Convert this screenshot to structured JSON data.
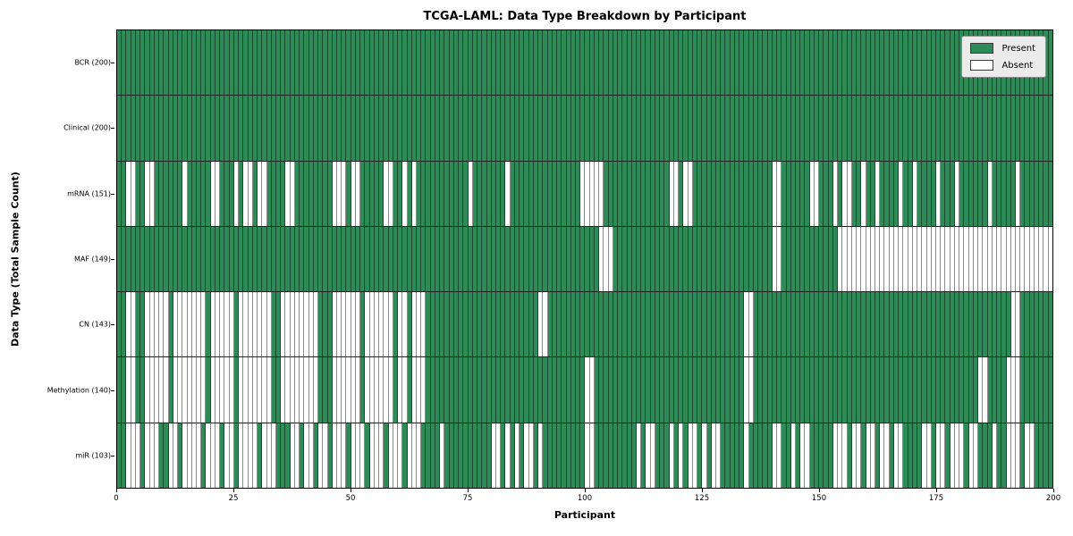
{
  "colors": {
    "present": "#2e8b57",
    "absent": "#ffffff",
    "cell_border": "#333333"
  },
  "chart_data": {
    "type": "heatmap",
    "title": "TCGA-LAML: Data Type Breakdown by Participant",
    "xlabel": "Participant",
    "ylabel": "Data Type (Total Sample Count)",
    "x_range": [
      0,
      200
    ],
    "x_ticks": [
      0,
      25,
      50,
      75,
      100,
      125,
      150,
      175,
      200
    ],
    "n_participants": 200,
    "values_encoding": "each row: 20 blocks of 10 chars, 1=Present 0=Absent, participants 0-199 left to right",
    "legend": {
      "position": "upper right",
      "items": [
        {
          "label": "Present",
          "color": "#2e8b57"
        },
        {
          "label": "Absent",
          "color": "#ffffff"
        }
      ]
    },
    "rows": [
      {
        "label": "BCR (200)",
        "name": "bcr",
        "total": 200,
        "presence": [
          "1111111111",
          "1111111111",
          "1111111111",
          "1111111111",
          "1111111111",
          "1111111111",
          "1111111111",
          "1111111111",
          "1111111111",
          "1111111111",
          "1111111111",
          "1111111111",
          "1111111111",
          "1111111111",
          "1111111111",
          "1111111111",
          "1111111111",
          "1111111111",
          "1111111111",
          "1111111111"
        ]
      },
      {
        "label": "Clinical (200)",
        "name": "clinical",
        "total": 200,
        "presence": [
          "1111111111",
          "1111111111",
          "1111111111",
          "1111111111",
          "1111111111",
          "1111111111",
          "1111111111",
          "1111111111",
          "1111111111",
          "1111111111",
          "1111111111",
          "1111111111",
          "1111111111",
          "1111111111",
          "1111111111",
          "1111111111",
          "1111111111",
          "1111111111",
          "1111111111",
          "1111111111"
        ]
      },
      {
        "label": "mRNA (151)",
        "name": "mrna",
        "total": 151,
        "presence": [
          "1100110011",
          "1111011111",
          "0011101001",
          "0011110011",
          "1111110001",
          "0011111001",
          "1010111111",
          "1111101111",
          "1110111111",
          "1111111110",
          "0000111111",
          "1111111100",
          "1001111111",
          "1111111111",
          "0011111100",
          "1110100110",
          "1101111011",
          "0111101110",
          "1111110111",
          "1101111111"
        ]
      },
      {
        "label": "MAF (149)",
        "name": "maf",
        "total": 149,
        "presence": [
          "1111111111",
          "1111111111",
          "1111111111",
          "1111111111",
          "1111111111",
          "1111111111",
          "1111111111",
          "1111111111",
          "1111111111",
          "1111111111",
          "1110001111",
          "1111111111",
          "1111111111",
          "1111111111",
          "0011111111",
          "1111000000",
          "0000000000",
          "0000000000",
          "0000000000",
          "0000000000"
        ]
      },
      {
        "label": "CN (143)",
        "name": "cn",
        "total": 143,
        "presence": [
          "1100110000",
          "0100000001",
          "0000010000",
          "0001100000",
          "0001110000",
          "0010000001",
          "0010001111",
          "1111111111",
          "1111111111",
          "0011111111",
          "1111111111",
          "1111111111",
          "1111111111",
          "1111001111",
          "1111111111",
          "1111111111",
          "1111111111",
          "1111111111",
          "1111111111",
          "1001111111"
        ]
      },
      {
        "label": "Methylation (140)",
        "name": "methylation",
        "total": 140,
        "presence": [
          "1100110000",
          "0100000001",
          "0000010000",
          "0001100000",
          "0001110000",
          "0010000001",
          "0010001111",
          "1111111111",
          "1111111111",
          "1111111111",
          "0011111111",
          "1111111111",
          "1111111111",
          "1111001111",
          "1111111111",
          "1111111111",
          "1111111111",
          "1111111111",
          "1111001111",
          "0001111111"
        ]
      },
      {
        "label": "miR (103)",
        "name": "mir",
        "total": 103,
        "presence": [
          "1100010001",
          "1001000010",
          "0010010000",
          "1000111001",
          "0010010001",
          "0001000100",
          "0100011110",
          "1111111111",
          "0010101001",
          "0111111111",
          "0011111111",
          "1010011101",
          "0100101001",
          "1111011111",
          "0011010011",
          "1110001001",
          "0010010011",
          "1100100100",
          "0100111011",
          "0001001111"
        ]
      }
    ]
  }
}
